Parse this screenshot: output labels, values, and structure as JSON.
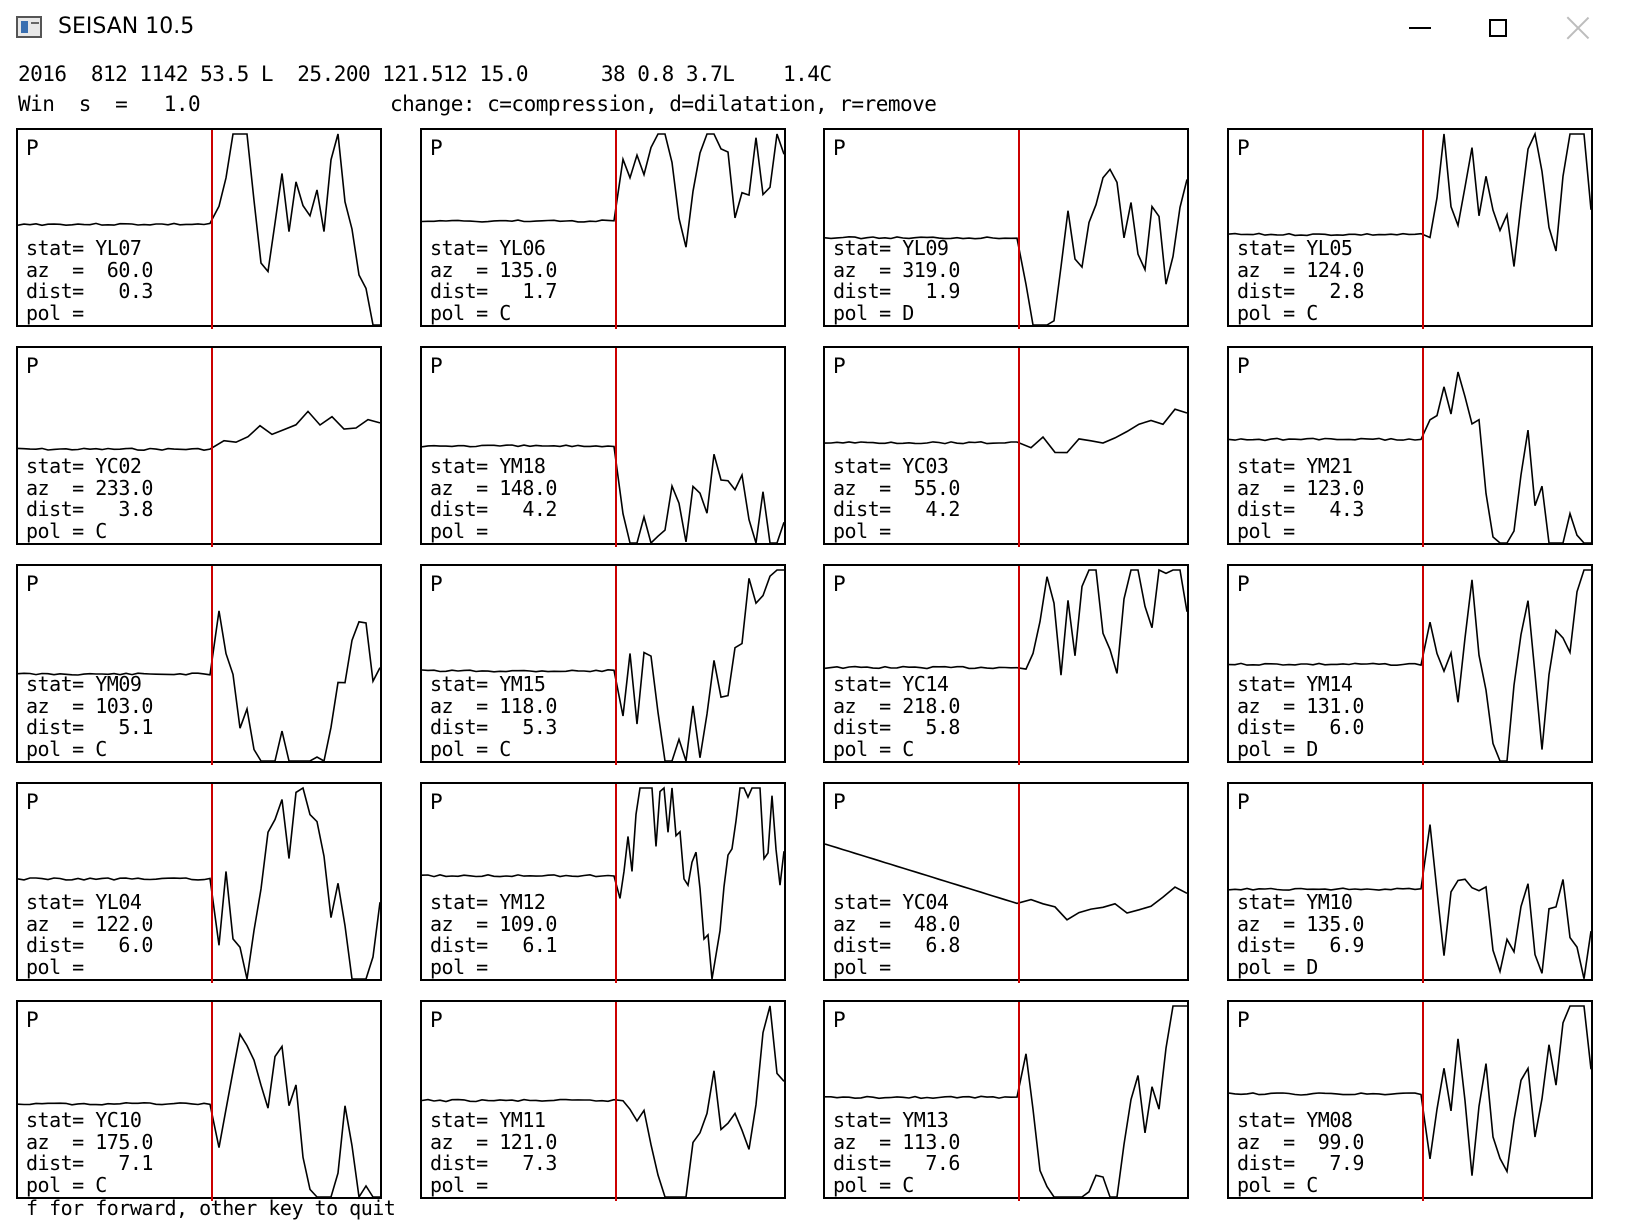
{
  "window": {
    "title": "SEISAN 10.5",
    "controls": {
      "minimize_icon": "minimize-icon",
      "maximize_icon": "maximize-icon",
      "close_icon": "close-icon"
    }
  },
  "header": {
    "event_line": "2016  812 1142 53.5 L  25.200 121.512 15.0      38 0.8 3.7L    1.4C",
    "win_label": "Win  s  =   1.0",
    "change_hint": "change: c=compression, d=dilatation, r=remove"
  },
  "colors": {
    "pick_line": "#cc0000",
    "trace": "#000000"
  },
  "panels": [
    {
      "phase": "P",
      "stat": "stat= YL07",
      "az": "az  =  60.0",
      "dist": "dist=   0.3",
      "pol": "pol ="
    },
    {
      "phase": "P",
      "stat": "stat= YL06",
      "az": "az  = 135.0",
      "dist": "dist=   1.7",
      "pol": "pol = C"
    },
    {
      "phase": "P",
      "stat": "stat= YL09",
      "az": "az  = 319.0",
      "dist": "dist=   1.9",
      "pol": "pol = D"
    },
    {
      "phase": "P",
      "stat": "stat= YL05",
      "az": "az  = 124.0",
      "dist": "dist=   2.8",
      "pol": "pol = C"
    },
    {
      "phase": "P",
      "stat": "stat= YC02",
      "az": "az  = 233.0",
      "dist": "dist=   3.8",
      "pol": "pol = C"
    },
    {
      "phase": "P",
      "stat": "stat= YM18",
      "az": "az  = 148.0",
      "dist": "dist=   4.2",
      "pol": "pol ="
    },
    {
      "phase": "P",
      "stat": "stat= YC03",
      "az": "az  =  55.0",
      "dist": "dist=   4.2",
      "pol": "pol ="
    },
    {
      "phase": "P",
      "stat": "stat= YM21",
      "az": "az  = 123.0",
      "dist": "dist=   4.3",
      "pol": "pol ="
    },
    {
      "phase": "P",
      "stat": "stat= YM09",
      "az": "az  = 103.0",
      "dist": "dist=   5.1",
      "pol": "pol = C"
    },
    {
      "phase": "P",
      "stat": "stat= YM15",
      "az": "az  = 118.0",
      "dist": "dist=   5.3",
      "pol": "pol = C"
    },
    {
      "phase": "P",
      "stat": "stat= YC14",
      "az": "az  = 218.0",
      "dist": "dist=   5.8",
      "pol": "pol = C"
    },
    {
      "phase": "P",
      "stat": "stat= YM14",
      "az": "az  = 131.0",
      "dist": "dist=   6.0",
      "pol": "pol = D"
    },
    {
      "phase": "P",
      "stat": "stat= YL04",
      "az": "az  = 122.0",
      "dist": "dist=   6.0",
      "pol": "pol ="
    },
    {
      "phase": "P",
      "stat": "stat= YM12",
      "az": "az  = 109.0",
      "dist": "dist=   6.1",
      "pol": "pol ="
    },
    {
      "phase": "P",
      "stat": "stat= YC04",
      "az": "az  =  48.0",
      "dist": "dist=   6.8",
      "pol": "pol ="
    },
    {
      "phase": "P",
      "stat": "stat= YM10",
      "az": "az  = 135.0",
      "dist": "dist=   6.9",
      "pol": "pol = D"
    },
    {
      "phase": "P",
      "stat": "stat= YC10",
      "az": "az  = 175.0",
      "dist": "dist=   7.1",
      "pol": "pol = C"
    },
    {
      "phase": "P",
      "stat": "stat= YM11",
      "az": "az  = 121.0",
      "dist": "dist=   7.3",
      "pol": "pol ="
    },
    {
      "phase": "P",
      "stat": "stat= YM13",
      "az": "az  = 113.0",
      "dist": "dist=   7.6",
      "pol": "pol = C"
    },
    {
      "phase": "P",
      "stat": "stat= YM08",
      "az": "az  =  99.0",
      "dist": "dist=   7.9",
      "pol": "pol = C"
    }
  ],
  "footer": {
    "prompt": "f for forward, other key to quit"
  }
}
